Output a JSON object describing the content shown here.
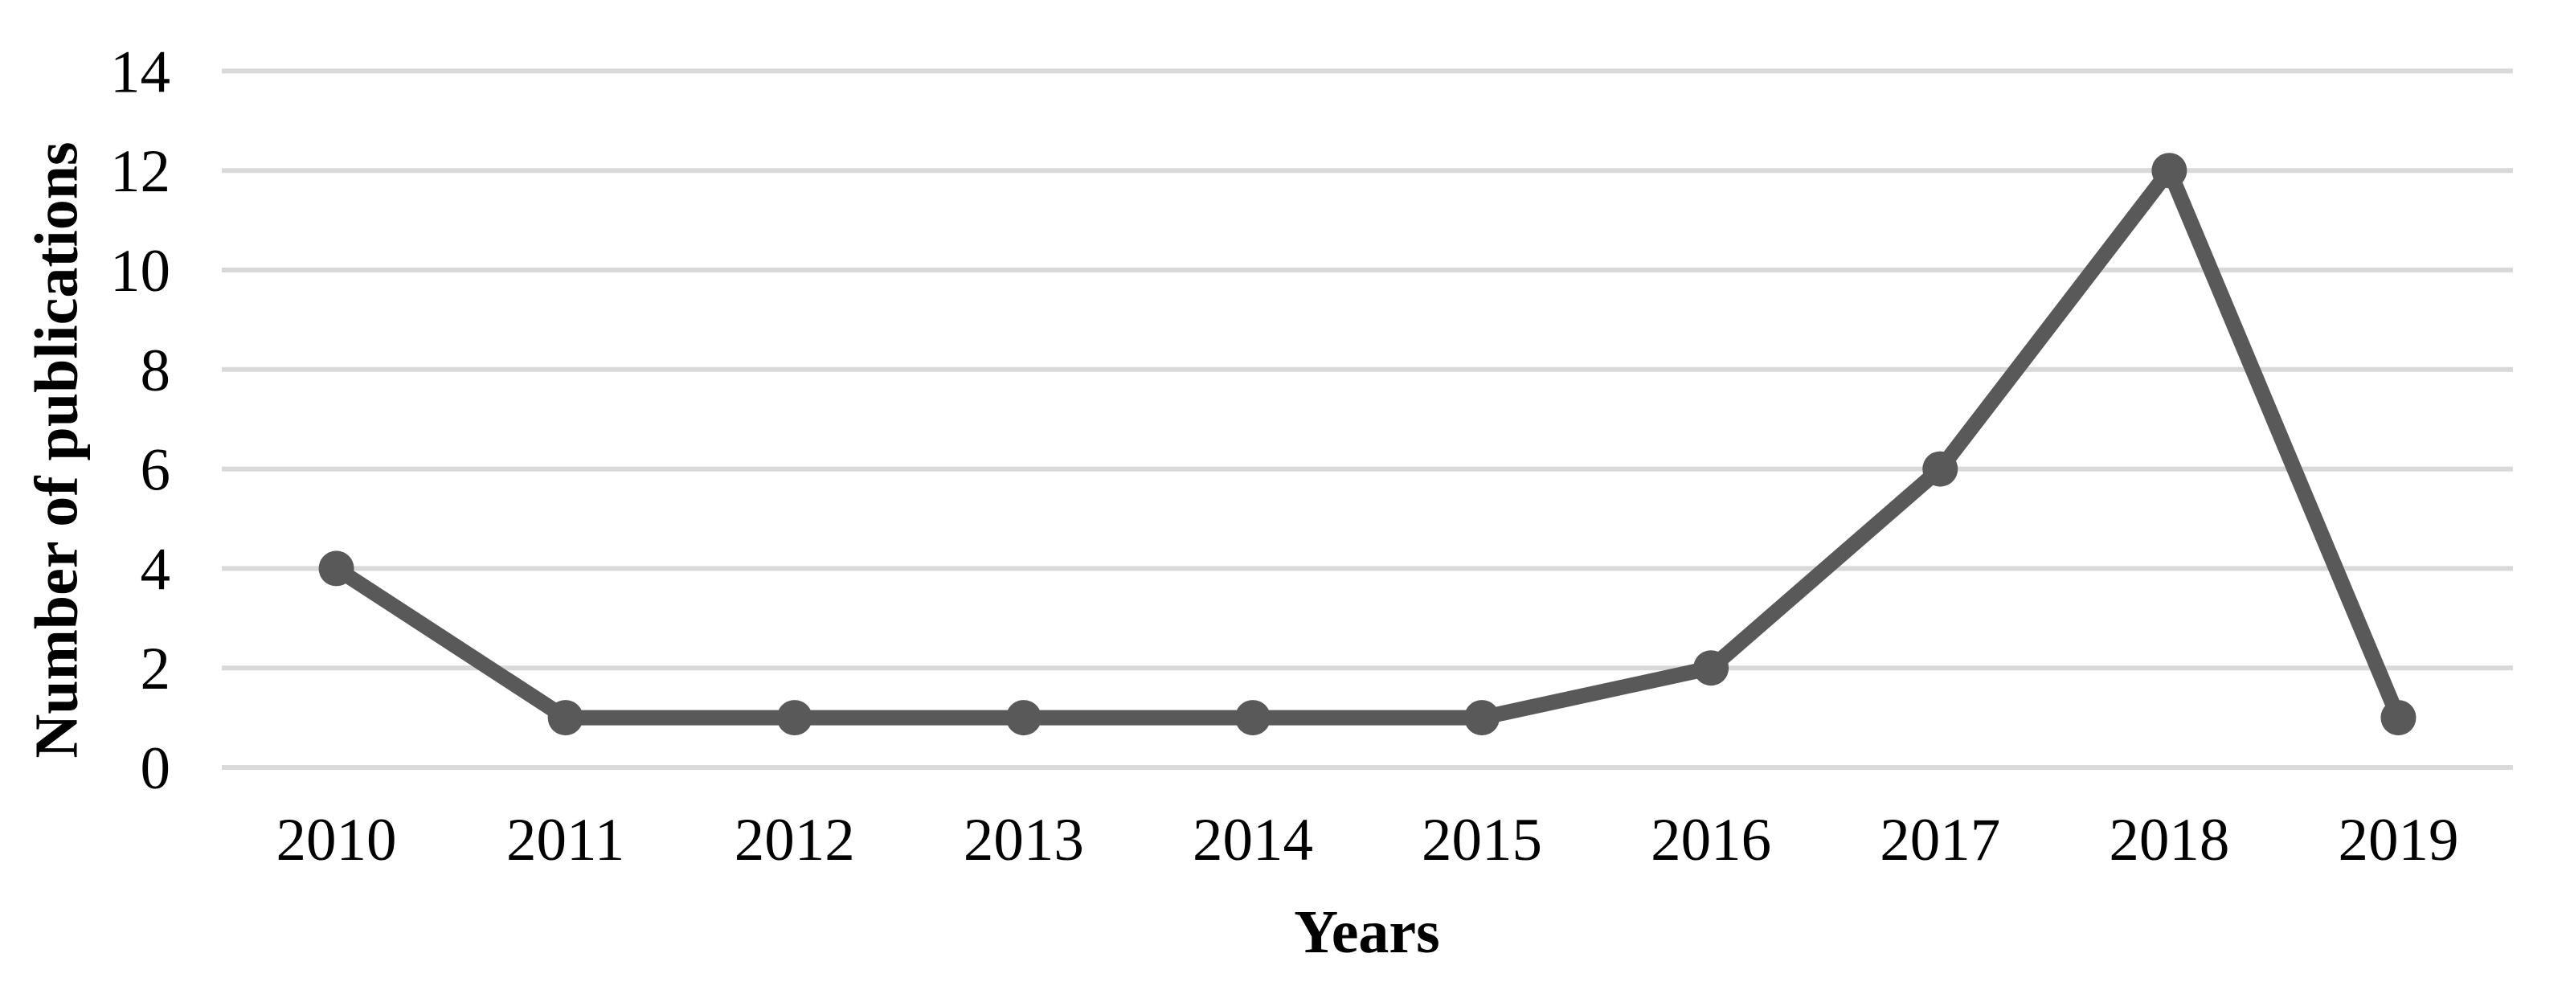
{
  "chart_data": {
    "type": "line",
    "title": "",
    "categories": [
      "2010",
      "2011",
      "2012",
      "2013",
      "2014",
      "2015",
      "2016",
      "2017",
      "2018",
      "2019"
    ],
    "series": [
      {
        "name": "Number of publications",
        "values": [
          4,
          1,
          1,
          1,
          1,
          1,
          2,
          6,
          12,
          1
        ]
      }
    ],
    "xlabel": "Years",
    "ylabel": "Number of publications",
    "ylim": [
      0,
      14
    ],
    "yticks": [
      0,
      2,
      4,
      6,
      8,
      10,
      12,
      14
    ],
    "grid": "horizontal",
    "legend": "none",
    "marker": "circle",
    "colors": {
      "line": "#595959",
      "marker": "#595959",
      "gridline": "#D9D9D9",
      "text": "#000000",
      "background": "#FFFFFF"
    }
  }
}
